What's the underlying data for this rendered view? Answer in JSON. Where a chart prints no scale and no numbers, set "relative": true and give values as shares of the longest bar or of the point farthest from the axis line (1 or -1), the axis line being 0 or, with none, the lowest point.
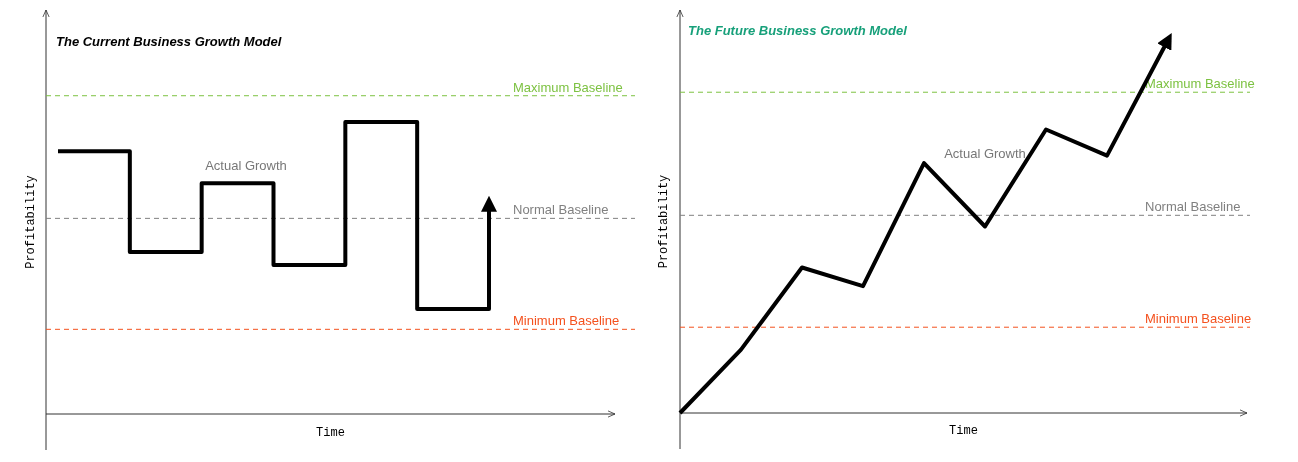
{
  "chart_data": [
    {
      "type": "step",
      "title": "The Current Business Growth Model",
      "xlabel": "Time",
      "ylabel": "Profitability",
      "relative": true,
      "categories": [
        null,
        null,
        null,
        null,
        null,
        null,
        null
      ],
      "series": [
        {
          "color": "#000000",
          "values": [
            0.9,
            0.555,
            0.79,
            0.51,
            1.0,
            0.36,
            0.72
          ]
        }
      ],
      "ref_lines": [
        {
          "axis": "y",
          "value": 1.09,
          "label": "Maximum Baseline",
          "color": "#7dc242",
          "line_style": "dashed"
        },
        {
          "axis": "y",
          "value": 0.67,
          "label": "Normal Baseline",
          "color": "#808080",
          "line_style": "dashed"
        },
        {
          "axis": "y",
          "value": 0.29,
          "label": "Minimum Baseline",
          "color": "#f4511e",
          "line_style": "dashed"
        }
      ],
      "annotations": [
        "Actual Growth"
      ]
    },
    {
      "type": "line",
      "title": "The Future Business Growth Model",
      "xlabel": "Time",
      "ylabel": "Profitability",
      "relative": true,
      "categories": [
        null,
        null,
        null,
        null,
        null,
        null,
        null,
        null,
        null
      ],
      "series": [
        {
          "color": "#000000",
          "values": [
            0,
            0.17,
            0.39,
            0.34,
            0.67,
            0.5,
            0.76,
            0.69,
            1.0
          ]
        }
      ],
      "ref_lines": [
        {
          "axis": "y",
          "value": 0.86,
          "label": "Maximum Baseline",
          "color": "#7dc242",
          "line_style": "dashed"
        },
        {
          "axis": "y",
          "value": 0.53,
          "label": "Normal Baseline",
          "color": "#808080",
          "line_style": "dashed"
        },
        {
          "axis": "y",
          "value": 0.23,
          "label": "Minimum Baseline",
          "color": "#f4511e",
          "line_style": "dashed"
        }
      ],
      "annotations": [
        "Actual Growth"
      ]
    }
  ]
}
